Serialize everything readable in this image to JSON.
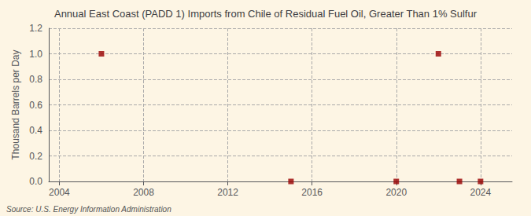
{
  "chart_data": {
    "type": "scatter",
    "title": "Annual East Coast (PADD 1) Imports from Chile of Residual Fuel Oil, Greater Than 1% Sulfur",
    "ylabel": "Thousand Barrels per Day",
    "annotation": "Source: U.S. Energy Information Administration",
    "x": [
      2006,
      2015,
      2020,
      2022,
      2023,
      2024
    ],
    "values": [
      1.0,
      0.0,
      0.0,
      1.0,
      0.0,
      0.0
    ],
    "color": "#990000",
    "marker": "square",
    "xlim": [
      2003.5,
      2025.5
    ],
    "xticks": [
      2004,
      2008,
      2012,
      2016,
      2020,
      2024
    ],
    "ylim": [
      0.0,
      1.2
    ],
    "yticks": [
      {
        "value": 0.0,
        "label": "0.0"
      },
      0.2,
      0.4,
      0.6,
      0.8,
      {
        "value": 1.0,
        "label": "1.0"
      },
      1.2
    ],
    "grid": true
  }
}
